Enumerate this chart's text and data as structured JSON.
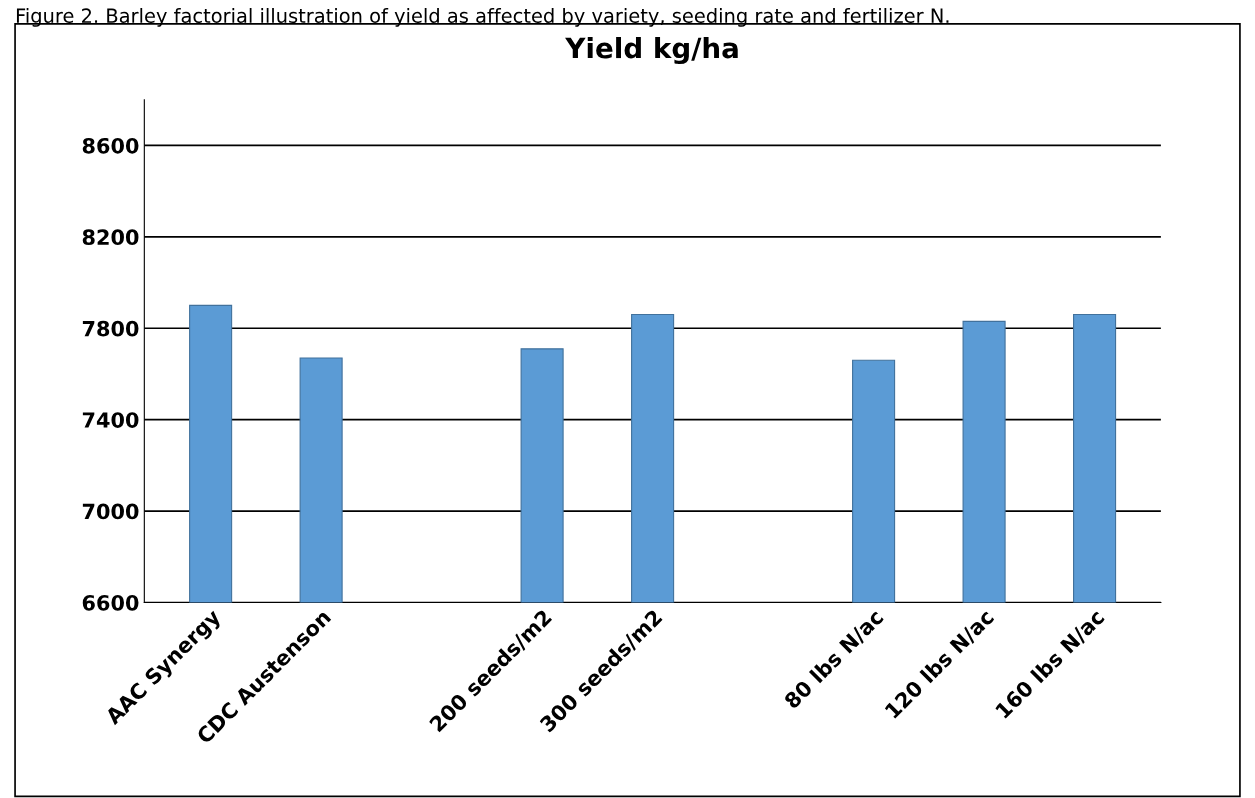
{
  "chart_data": {
    "type": "bar",
    "title": "Yield kg/ha",
    "annotations": [
      "Figure 2. Barley factorial illustration of yield as affected by variety, seeding rate and fertilizer N."
    ],
    "categories": [
      "AAC Synergy",
      "CDC Austenson",
      null,
      "200 seeds/m2",
      "300 seeds/m2",
      null,
      "80 lbs N/ac",
      "120 lbs N/ac",
      "160 lbs N/ac"
    ],
    "values": [
      7900,
      7670,
      null,
      7710,
      7860,
      null,
      7660,
      7830,
      7860
    ],
    "color": "#5b9bd5",
    "ylim": [
      6600,
      8800
    ],
    "yticks": [
      6600,
      7000,
      7400,
      7800,
      8200,
      8600
    ],
    "grid": "y"
  }
}
